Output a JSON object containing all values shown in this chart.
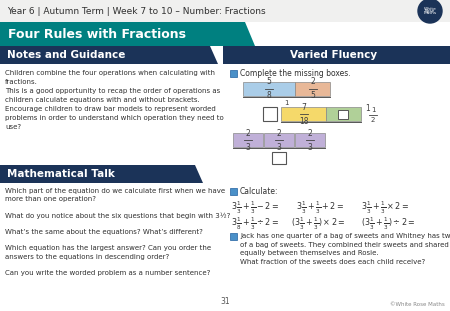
{
  "title_bar": "Year 6 | Autumn Term | Week 7 to 10 – Number: Fractions",
  "main_title": "Four Rules with Fractions",
  "section_left1": "Notes and Guidance",
  "section_right1": "Varied Fluency",
  "section_left2": "Mathematical Talk",
  "notes_lines": [
    "Children combine the four operations when calculating with",
    "fractions.",
    "This is a good opportunity to recap the order of operations as",
    "children calculate equations with and without brackets.",
    "Encourage children to draw bar models to represent worded",
    "problems in order to understand which operation they need to",
    "use?"
  ],
  "math_talk_lines": [
    "Which part of the equation do we calculate first when we have",
    "more than one operation?",
    "",
    "What do you notice about the six questions that begin with 3½?",
    "",
    "What’s the same about the equations? What’s different?",
    "",
    "Which equation has the largest answer? Can you order the",
    "answers to the equations in descending order?",
    "",
    "Can you write the worded problem as a number sentence?"
  ],
  "word_problem_lines": [
    "Jack has one quarter of a bag of sweets and Whitney has two thirds",
    "of a bag of sweets. They combined their sweets and shared them",
    "equally between themselves and Rosie.",
    "What fraction of the sweets does each child receive?"
  ],
  "page_num": "31",
  "copyright": "©White Rose Maths",
  "bg_white": "#ffffff",
  "bg_header": "#f0f0ef",
  "teal": "#008080",
  "dark_navy": "#1b3358",
  "medium_navy": "#1b3a5e",
  "blue_bar": "#aacde8",
  "salmon_bar": "#e8b898",
  "yellow_bar": "#f5d96a",
  "green_bar": "#b0d098",
  "purple_bar": "#c0b0d8",
  "icon_blue": "#4a90c8",
  "text_dark": "#303030",
  "text_mid": "#555555",
  "logo_navy": "#1b3358"
}
